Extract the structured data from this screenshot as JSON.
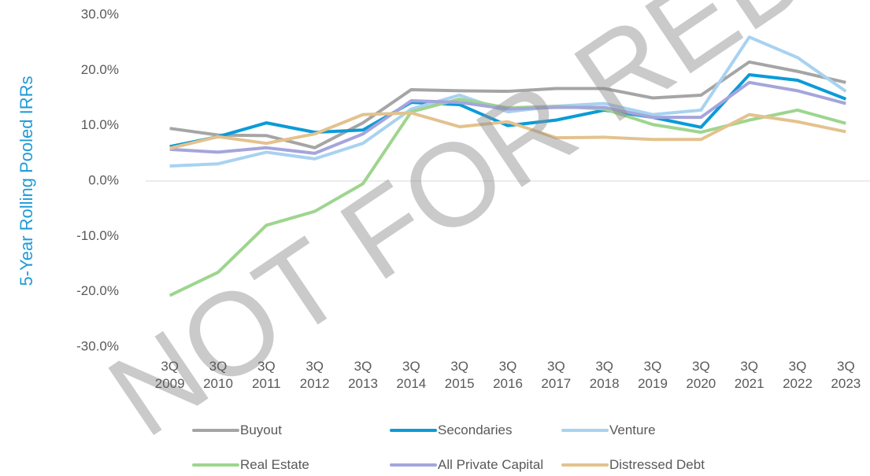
{
  "chart_data": {
    "type": "line",
    "y_label": "5-Year Rolling Pooled IRRs",
    "watermark": "NOT FOR RED",
    "categories": [
      "3Q 2009",
      "3Q 2010",
      "3Q 2011",
      "3Q 2012",
      "3Q 2013",
      "3Q 2014",
      "3Q 2015",
      "3Q 2016",
      "3Q 2017",
      "3Q 2018",
      "3Q 2019",
      "3Q 2020",
      "3Q 2021",
      "3Q 2022",
      "3Q 2023"
    ],
    "series": [
      {
        "name": "Buyout",
        "color": "#a5a5a5",
        "values": [
          9.5,
          8.3,
          8.2,
          6.0,
          10.5,
          16.5,
          16.3,
          16.2,
          16.7,
          16.7,
          15.0,
          15.5,
          21.5,
          19.8,
          17.8
        ]
      },
      {
        "name": "Secondaries",
        "color": "#0b9bd7",
        "values": [
          6.2,
          8.0,
          10.5,
          8.8,
          9.2,
          14.2,
          13.8,
          10.0,
          11.0,
          12.8,
          11.5,
          9.7,
          19.2,
          18.2,
          14.8
        ]
      },
      {
        "name": "Venture",
        "color": "#a8d2f0",
        "values": [
          2.7,
          3.1,
          5.2,
          4.0,
          6.8,
          13.0,
          15.5,
          12.5,
          13.5,
          14.0,
          12.0,
          12.8,
          26.0,
          22.3,
          16.2
        ]
      },
      {
        "name": "Real Estate",
        "color": "#9ed58e",
        "values": [
          -20.7,
          -16.5,
          -8.0,
          -5.5,
          -0.5,
          12.5,
          14.8,
          13.2,
          13.5,
          13.0,
          10.2,
          8.8,
          11.0,
          12.8,
          10.4
        ]
      },
      {
        "name": "All Private Capital",
        "color": "#a5a5dc",
        "values": [
          5.7,
          5.2,
          6.0,
          5.0,
          8.5,
          14.5,
          14.2,
          13.0,
          13.3,
          13.3,
          11.5,
          11.5,
          17.8,
          16.3,
          14.0
        ]
      },
      {
        "name": "Distressed Debt",
        "color": "#e3c28e",
        "values": [
          5.9,
          8.0,
          6.8,
          8.5,
          12.0,
          12.3,
          9.8,
          10.7,
          7.8,
          7.9,
          7.5,
          7.5,
          12.0,
          10.7,
          8.9
        ]
      }
    ],
    "ylim": [
      -30,
      30
    ],
    "yticks": [
      {
        "value": -30,
        "label": "-30.0%"
      },
      {
        "value": -20,
        "label": "-20.0%"
      },
      {
        "value": -10,
        "label": "-10.0%"
      },
      {
        "value": 0,
        "label": "0.0%"
      },
      {
        "value": 10,
        "label": "10.0%"
      },
      {
        "value": 20,
        "label": "20.0%"
      },
      {
        "value": 30,
        "label": "30.0%"
      }
    ],
    "grid": false,
    "legend": "bottom"
  }
}
